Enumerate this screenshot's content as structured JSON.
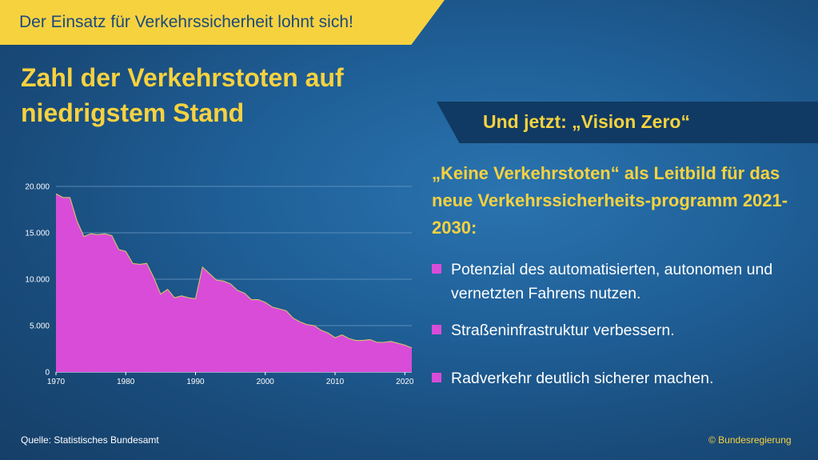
{
  "banner": {
    "text": "Der Einsatz für Verkehrssicherheit lohnt sich!"
  },
  "headline": "Zahl der Verkehrstoten auf niedrigstem Stand",
  "vision": {
    "label": "Und jetzt: „Vision Zero“"
  },
  "subhead": "„Keine Verkehrstoten“ als Leitbild für das neue Verkehrssicherheits-programm 2021-2030:",
  "bullets": [
    "Potenzial des automatisierten, autonomen und vernetzten Fahrens nutzen.",
    "Straßeninfrastruktur verbessern.",
    "Radverkehr deutlich sicherer machen."
  ],
  "footer": {
    "source": "Quelle: Statistisches Bundesamt",
    "copyright": "© Bundesregierung"
  },
  "colors": {
    "accent_yellow": "#f7d23f",
    "area_fill": "#d84cd8",
    "background": "#1f5f97",
    "dark_banner": "#103a63"
  },
  "chart_data": {
    "type": "area",
    "title": "",
    "xlabel": "",
    "ylabel": "",
    "xlim": [
      1970,
      2021
    ],
    "ylim": [
      0,
      20000
    ],
    "yticks": [
      0,
      5000,
      10000,
      15000,
      20000
    ],
    "ytick_labels": [
      "0",
      "5.000",
      "10.000",
      "15.000",
      "20.000"
    ],
    "xticks": [
      1970,
      1980,
      1990,
      2000,
      2010,
      2020
    ],
    "xtick_labels": [
      "1970",
      "1980",
      "1990",
      "2000",
      "2010",
      "2020"
    ],
    "grid": "horizontal",
    "x": [
      1970,
      1971,
      1972,
      1973,
      1974,
      1975,
      1976,
      1977,
      1978,
      1979,
      1980,
      1981,
      1982,
      1983,
      1984,
      1985,
      1986,
      1987,
      1988,
      1989,
      1990,
      1991,
      1992,
      1993,
      1994,
      1995,
      1996,
      1997,
      1998,
      1999,
      2000,
      2001,
      2002,
      2003,
      2004,
      2005,
      2006,
      2007,
      2008,
      2009,
      2010,
      2011,
      2012,
      2013,
      2014,
      2015,
      2016,
      2017,
      2018,
      2019,
      2020,
      2021
    ],
    "series": [
      {
        "values": [
          19200,
          18800,
          18800,
          16300,
          14600,
          14900,
          14800,
          14900,
          14700,
          13200,
          13000,
          11700,
          11600,
          11700,
          10200,
          8400,
          8900,
          8000,
          8200,
          8000,
          7900,
          11300,
          10600,
          9900,
          9800,
          9500,
          8800,
          8500,
          7800,
          7800,
          7500,
          7000,
          6800,
          6600,
          5800,
          5400,
          5100,
          5000,
          4500,
          4200,
          3700,
          4000,
          3600,
          3400,
          3400,
          3500,
          3200,
          3200,
          3300,
          3100,
          2900,
          2600
        ]
      }
    ]
  }
}
